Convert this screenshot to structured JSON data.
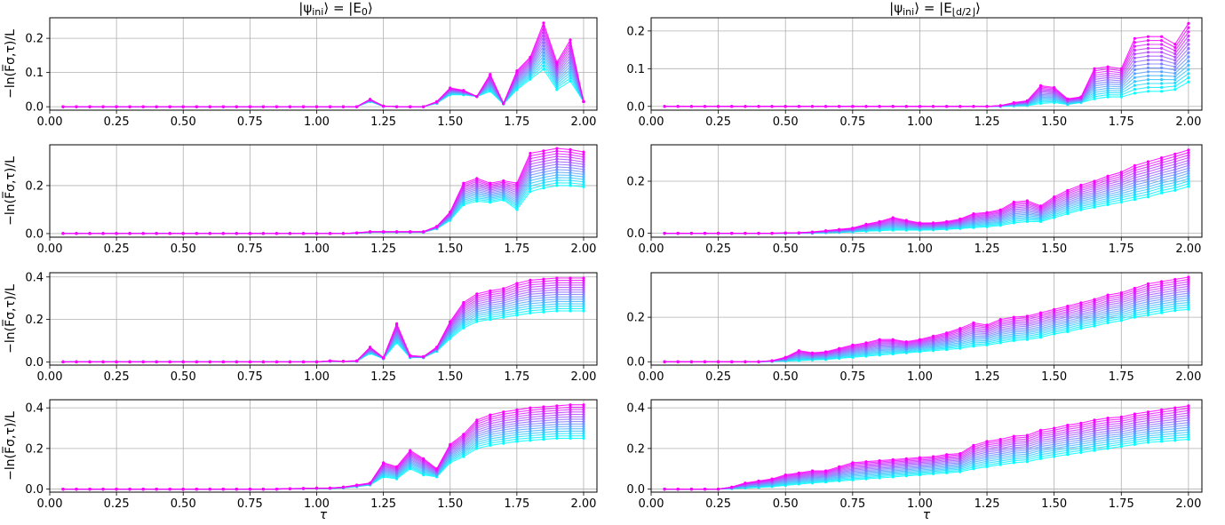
{
  "columns": [
    {
      "title_main": "|ψ",
      "title_sub": "ini",
      "title_rest": "⟩ = |E",
      "title_sub2": "0",
      "title_end": "⟩"
    },
    {
      "title_main": "|ψ",
      "title_sub": "ini",
      "title_rest": "⟩ = |E",
      "title_sub2": "⌊d/2⌋",
      "title_end": "⟩"
    }
  ],
  "ylabel": "−ln(F̅σ,τ)/L",
  "xlabel": "τ",
  "colors": {
    "start": "#00ffff",
    "end": "#ff00ff",
    "grid": "#b0b0b0"
  },
  "chart_data": {
    "type": "line",
    "n_series": 15,
    "series_color_map": "cool (cyan → magenta)",
    "x": [
      0.05,
      0.1,
      0.15,
      0.2,
      0.25,
      0.3,
      0.35,
      0.4,
      0.45,
      0.5,
      0.55,
      0.6,
      0.65,
      0.7,
      0.75,
      0.8,
      0.85,
      0.9,
      0.95,
      1.0,
      1.05,
      1.1,
      1.15,
      1.2,
      1.25,
      1.3,
      1.35,
      1.4,
      1.45,
      1.5,
      1.55,
      1.6,
      1.65,
      1.7,
      1.75,
      1.8,
      1.85,
      1.9,
      1.95,
      2.0
    ],
    "xticks": [
      "0.00",
      "0.25",
      "0.50",
      "0.75",
      "1.00",
      "1.25",
      "1.50",
      "1.75",
      "2.00"
    ],
    "xlim": [
      -0.0,
      2.05
    ],
    "grid": true,
    "panels": [
      {
        "row": 0,
        "col": 0,
        "ylim": [
          -0.01,
          0.26
        ],
        "yticks": [
          "0.0",
          "0.1",
          "0.2"
        ],
        "top": [
          0,
          0,
          0,
          0,
          0,
          0,
          0,
          0,
          0,
          0,
          0,
          0,
          0,
          0,
          0,
          0,
          0,
          0,
          0,
          0,
          0,
          0,
          0,
          0.022,
          0.002,
          0,
          0,
          0,
          0.015,
          0.055,
          0.048,
          0.03,
          0.095,
          0.01,
          0.105,
          0.145,
          0.245,
          0.13,
          0.195,
          0.015
        ],
        "bottom": [
          0,
          0,
          0,
          0,
          0,
          0,
          0,
          0,
          0,
          0,
          0,
          0,
          0,
          0,
          0,
          0,
          0,
          0,
          0,
          0,
          0,
          0,
          0,
          0.015,
          0.001,
          0,
          0,
          0,
          0.01,
          0.035,
          0.035,
          0.03,
          0.045,
          0.008,
          0.05,
          0.08,
          0.11,
          0.05,
          0.075,
          0.015
        ]
      },
      {
        "row": 0,
        "col": 1,
        "ylim": [
          -0.01,
          0.235
        ],
        "yticks": [
          "0.0",
          "0.1",
          "0.2"
        ],
        "top": [
          0,
          0,
          0,
          0,
          0,
          0,
          0,
          0,
          0,
          0,
          0,
          0,
          0,
          0,
          0,
          0,
          0,
          0,
          0,
          0,
          0,
          0,
          0,
          0,
          0,
          0.002,
          0.01,
          0.015,
          0.055,
          0.05,
          0.02,
          0.025,
          0.1,
          0.105,
          0.1,
          0.18,
          0.185,
          0.185,
          0.165,
          0.22
        ],
        "bottom": [
          0,
          0,
          0,
          0,
          0,
          0,
          0,
          0,
          0,
          0,
          0,
          0,
          0,
          0,
          0,
          0,
          0,
          0,
          0,
          0,
          0,
          0,
          0,
          0,
          0,
          0,
          0.001,
          0.002,
          0.008,
          0.01,
          0.005,
          0.01,
          0.02,
          0.025,
          0.025,
          0.035,
          0.04,
          0.04,
          0.045,
          0.065
        ]
      },
      {
        "row": 1,
        "col": 0,
        "ylim": [
          -0.015,
          0.37
        ],
        "yticks": [
          "0.0",
          "0.2"
        ],
        "top": [
          0,
          0,
          0,
          0,
          0,
          0,
          0,
          0,
          0,
          0,
          0,
          0,
          0,
          0,
          0,
          0,
          0,
          0,
          0,
          0,
          0,
          0,
          0.003,
          0.008,
          0.008,
          0.008,
          0.008,
          0.008,
          0.03,
          0.09,
          0.21,
          0.23,
          0.21,
          0.22,
          0.21,
          0.335,
          0.345,
          0.355,
          0.35,
          0.34
        ],
        "bottom": [
          0,
          0,
          0,
          0,
          0,
          0,
          0,
          0,
          0,
          0,
          0,
          0,
          0,
          0,
          0,
          0,
          0,
          0,
          0,
          0,
          0,
          0,
          0.002,
          0.005,
          0.005,
          0.005,
          0.005,
          0.005,
          0.02,
          0.055,
          0.12,
          0.135,
          0.13,
          0.14,
          0.1,
          0.175,
          0.19,
          0.2,
          0.2,
          0.195
        ]
      },
      {
        "row": 1,
        "col": 1,
        "ylim": [
          -0.015,
          0.34
        ],
        "yticks": [
          "0.0",
          "0.2"
        ],
        "top": [
          0,
          0,
          0,
          0,
          0,
          0,
          0,
          0,
          0,
          0.001,
          0.002,
          0.005,
          0.01,
          0.015,
          0.02,
          0.035,
          0.045,
          0.06,
          0.05,
          0.04,
          0.04,
          0.045,
          0.055,
          0.075,
          0.08,
          0.09,
          0.12,
          0.125,
          0.105,
          0.14,
          0.165,
          0.185,
          0.2,
          0.22,
          0.235,
          0.26,
          0.275,
          0.29,
          0.305,
          0.32
        ],
        "bottom": [
          0,
          0,
          0,
          0,
          0,
          0,
          0,
          0,
          0,
          0,
          0,
          0,
          0.002,
          0.003,
          0.005,
          0.008,
          0.01,
          0.012,
          0.012,
          0.012,
          0.013,
          0.015,
          0.018,
          0.022,
          0.025,
          0.03,
          0.04,
          0.045,
          0.045,
          0.06,
          0.075,
          0.09,
          0.1,
          0.11,
          0.12,
          0.13,
          0.14,
          0.155,
          0.165,
          0.18
        ]
      },
      {
        "row": 2,
        "col": 0,
        "ylim": [
          -0.015,
          0.42
        ],
        "yticks": [
          "0.0",
          "0.2",
          "0.4"
        ],
        "top": [
          0,
          0,
          0,
          0,
          0,
          0,
          0,
          0,
          0,
          0,
          0,
          0,
          0,
          0,
          0,
          0,
          0,
          0,
          0,
          0,
          0.005,
          0.003,
          0.005,
          0.07,
          0.02,
          0.18,
          0.03,
          0.025,
          0.07,
          0.19,
          0.28,
          0.32,
          0.335,
          0.345,
          0.37,
          0.385,
          0.39,
          0.395,
          0.395,
          0.395
        ],
        "bottom": [
          0,
          0,
          0,
          0,
          0,
          0,
          0,
          0,
          0,
          0,
          0,
          0,
          0,
          0,
          0,
          0,
          0,
          0,
          0,
          0,
          0.003,
          0.002,
          0.003,
          0.04,
          0.015,
          0.09,
          0.02,
          0.02,
          0.05,
          0.11,
          0.16,
          0.19,
          0.2,
          0.21,
          0.22,
          0.23,
          0.235,
          0.24,
          0.24,
          0.24
        ]
      },
      {
        "row": 2,
        "col": 1,
        "ylim": [
          -0.015,
          0.4
        ],
        "yticks": [
          "0.0",
          "0.2"
        ],
        "top": [
          0,
          0,
          0,
          0,
          0,
          0,
          0,
          0,
          0.005,
          0.02,
          0.05,
          0.04,
          0.045,
          0.06,
          0.075,
          0.085,
          0.1,
          0.1,
          0.09,
          0.1,
          0.115,
          0.13,
          0.15,
          0.175,
          0.165,
          0.19,
          0.2,
          0.205,
          0.22,
          0.235,
          0.25,
          0.265,
          0.28,
          0.3,
          0.31,
          0.33,
          0.35,
          0.36,
          0.37,
          0.38
        ],
        "bottom": [
          0,
          0,
          0,
          0,
          0,
          0,
          0,
          0,
          0.001,
          0.003,
          0.005,
          0.008,
          0.01,
          0.015,
          0.02,
          0.025,
          0.03,
          0.035,
          0.04,
          0.045,
          0.05,
          0.055,
          0.06,
          0.07,
          0.075,
          0.085,
          0.095,
          0.1,
          0.11,
          0.125,
          0.135,
          0.15,
          0.16,
          0.175,
          0.185,
          0.2,
          0.21,
          0.22,
          0.23,
          0.235
        ]
      },
      {
        "row": 3,
        "col": 0,
        "ylim": [
          -0.015,
          0.44
        ],
        "yticks": [
          "0.0",
          "0.2",
          "0.4"
        ],
        "top": [
          0,
          0,
          0,
          0,
          0,
          0,
          0,
          0,
          0,
          0,
          0,
          0,
          0,
          0,
          0,
          0,
          0,
          0.002,
          0.003,
          0.005,
          0.005,
          0.01,
          0.02,
          0.03,
          0.13,
          0.11,
          0.19,
          0.15,
          0.1,
          0.22,
          0.27,
          0.34,
          0.365,
          0.38,
          0.39,
          0.4,
          0.405,
          0.41,
          0.415,
          0.415
        ],
        "bottom": [
          0,
          0,
          0,
          0,
          0,
          0,
          0,
          0,
          0,
          0,
          0,
          0,
          0,
          0,
          0,
          0,
          0,
          0.001,
          0.002,
          0.003,
          0.003,
          0.006,
          0.012,
          0.02,
          0.06,
          0.05,
          0.1,
          0.07,
          0.06,
          0.13,
          0.16,
          0.2,
          0.215,
          0.225,
          0.235,
          0.24,
          0.245,
          0.25,
          0.25,
          0.25
        ]
      },
      {
        "row": 3,
        "col": 1,
        "ylim": [
          -0.015,
          0.44
        ],
        "yticks": [
          "0.0",
          "0.2",
          "0.4"
        ],
        "top": [
          0,
          0,
          0,
          0,
          0,
          0.01,
          0.03,
          0.04,
          0.05,
          0.07,
          0.08,
          0.09,
          0.09,
          0.11,
          0.13,
          0.135,
          0.14,
          0.145,
          0.15,
          0.155,
          0.16,
          0.17,
          0.175,
          0.215,
          0.235,
          0.245,
          0.26,
          0.265,
          0.29,
          0.3,
          0.315,
          0.325,
          0.34,
          0.35,
          0.355,
          0.37,
          0.38,
          0.39,
          0.4,
          0.41
        ],
        "bottom": [
          0,
          0,
          0,
          0,
          0,
          0.002,
          0.005,
          0.008,
          0.012,
          0.018,
          0.025,
          0.03,
          0.035,
          0.04,
          0.045,
          0.05,
          0.055,
          0.06,
          0.065,
          0.07,
          0.075,
          0.08,
          0.085,
          0.1,
          0.11,
          0.12,
          0.13,
          0.135,
          0.15,
          0.16,
          0.17,
          0.18,
          0.19,
          0.2,
          0.21,
          0.22,
          0.23,
          0.235,
          0.24,
          0.245
        ]
      }
    ]
  }
}
